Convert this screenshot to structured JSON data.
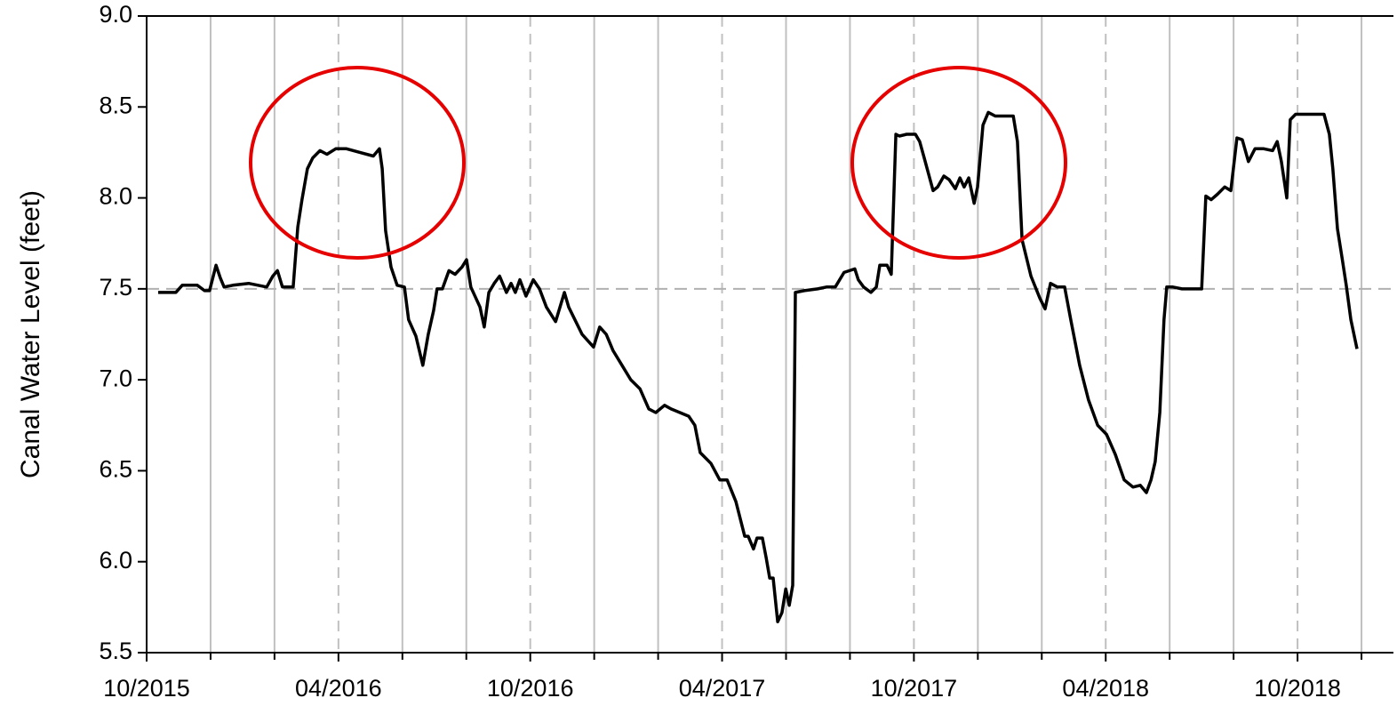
{
  "chart_data": {
    "type": "line",
    "ylabel": "Canal Water Level (feet)",
    "color": "#000000",
    "x": [
      2015.78,
      2015.826,
      2015.843,
      2015.882,
      2015.901,
      2015.914,
      2015.931,
      2015.942,
      2015.952,
      2015.975,
      2016.016,
      2016.063,
      2016.079,
      2016.091,
      2016.104,
      2016.132,
      2016.144,
      2016.155,
      2016.169,
      2016.183,
      2016.202,
      2016.22,
      2016.243,
      2016.271,
      2016.306,
      2016.341,
      2016.357,
      2016.364,
      2016.373,
      2016.387,
      2016.403,
      2016.422,
      2016.433,
      2016.452,
      2016.47,
      2016.484,
      2016.498,
      2016.507,
      2016.521,
      2016.538,
      2016.554,
      2016.572,
      2016.584,
      2016.595,
      2016.619,
      2016.63,
      2016.642,
      2016.656,
      2016.67,
      2016.688,
      2016.7,
      2016.711,
      2016.723,
      2016.739,
      2016.758,
      2016.774,
      2016.792,
      2016.816,
      2016.839,
      2016.85,
      2016.885,
      2016.915,
      2016.931,
      2016.948,
      2016.966,
      2016.989,
      2017.012,
      2017.036,
      2017.059,
      2017.077,
      2017.1,
      2017.117,
      2017.14,
      2017.163,
      2017.179,
      2017.193,
      2017.221,
      2017.244,
      2017.263,
      2017.286,
      2017.309,
      2017.318,
      2017.332,
      2017.341,
      2017.355,
      2017.365,
      2017.374,
      2017.383,
      2017.395,
      2017.406,
      2017.416,
      2017.425,
      2017.434,
      2017.441,
      2017.464,
      2017.499,
      2017.522,
      2017.545,
      2017.568,
      2017.596,
      2017.605,
      2017.619,
      2017.638,
      2017.652,
      2017.661,
      2017.68,
      2017.691,
      2017.703,
      2017.712,
      2017.731,
      2017.754,
      2017.765,
      2017.777,
      2017.8,
      2017.812,
      2017.828,
      2017.842,
      2017.858,
      2017.87,
      2017.881,
      2017.893,
      2017.907,
      2017.916,
      2017.93,
      2017.944,
      2017.962,
      2018.009,
      2018.02,
      2018.032,
      2018.055,
      2018.078,
      2018.092,
      2018.106,
      2018.124,
      2018.143,
      2018.159,
      2018.182,
      2018.205,
      2018.229,
      2018.252,
      2018.275,
      2018.298,
      2018.321,
      2018.34,
      2018.356,
      2018.368,
      2018.379,
      2018.391,
      2018.402,
      2018.409,
      2018.425,
      2018.449,
      2018.5,
      2018.511,
      2018.525,
      2018.541,
      2018.56,
      2018.576,
      2018.592,
      2018.606,
      2018.622,
      2018.639,
      2018.662,
      2018.685,
      2018.697,
      2018.708,
      2018.722,
      2018.731,
      2018.745,
      2018.785,
      2018.819,
      2018.833,
      2018.842,
      2018.854,
      2018.866,
      2018.877,
      2018.889,
      2018.905
    ],
    "values": [
      7.48,
      7.48,
      7.52,
      7.52,
      7.49,
      7.49,
      7.63,
      7.56,
      7.51,
      7.52,
      7.53,
      7.51,
      7.57,
      7.6,
      7.51,
      7.51,
      7.84,
      7.99,
      8.16,
      8.22,
      8.26,
      8.24,
      8.27,
      8.27,
      8.25,
      8.23,
      8.27,
      8.16,
      7.82,
      7.62,
      7.52,
      7.51,
      7.33,
      7.24,
      7.08,
      7.25,
      7.38,
      7.5,
      7.5,
      7.6,
      7.58,
      7.62,
      7.66,
      7.51,
      7.4,
      7.29,
      7.48,
      7.53,
      7.57,
      7.48,
      7.53,
      7.48,
      7.55,
      7.46,
      7.55,
      7.5,
      7.4,
      7.32,
      7.48,
      7.4,
      7.25,
      7.18,
      7.29,
      7.25,
      7.16,
      7.08,
      7.0,
      6.95,
      6.84,
      6.82,
      6.86,
      6.84,
      6.82,
      6.8,
      6.75,
      6.6,
      6.54,
      6.45,
      6.45,
      6.33,
      6.14,
      6.14,
      6.07,
      6.13,
      6.13,
      6.02,
      5.91,
      5.91,
      5.67,
      5.72,
      5.85,
      5.76,
      5.87,
      7.48,
      7.49,
      7.5,
      7.51,
      7.51,
      7.59,
      7.61,
      7.55,
      7.51,
      7.48,
      7.51,
      7.63,
      7.63,
      7.58,
      8.35,
      8.34,
      8.35,
      8.35,
      8.31,
      8.22,
      8.04,
      8.06,
      8.12,
      8.1,
      8.05,
      8.11,
      8.06,
      8.11,
      7.97,
      8.06,
      8.4,
      8.47,
      8.45,
      8.45,
      8.31,
      7.77,
      7.57,
      7.45,
      7.39,
      7.53,
      7.51,
      7.51,
      7.33,
      7.08,
      6.89,
      6.75,
      6.7,
      6.59,
      6.45,
      6.41,
      6.42,
      6.38,
      6.45,
      6.55,
      6.82,
      7.33,
      7.51,
      7.51,
      7.5,
      7.5,
      8.01,
      7.99,
      8.02,
      8.06,
      8.04,
      8.33,
      8.32,
      8.2,
      8.27,
      8.27,
      8.26,
      8.31,
      8.2,
      8.0,
      8.43,
      8.46,
      8.46,
      8.46,
      8.35,
      8.16,
      7.83,
      7.67,
      7.52,
      7.33,
      7.17
    ],
    "xlim": [
      2015.75,
      2019.0
    ],
    "xticks": [
      {
        "value": 2015.75,
        "label": "10/2015"
      },
      {
        "value": 2016.25,
        "label": "04/2016"
      },
      {
        "value": 2016.75,
        "label": "10/2016"
      },
      {
        "value": 2017.25,
        "label": "04/2017"
      },
      {
        "value": 2017.75,
        "label": "10/2017"
      },
      {
        "value": 2018.25,
        "label": "04/2018"
      },
      {
        "value": 2018.75,
        "label": "10/2018"
      }
    ],
    "xgrid_minor": [
      2015.9167,
      2016.0833,
      2016.4167,
      2016.5833,
      2016.9167,
      2017.0833,
      2017.4167,
      2017.5833,
      2017.9167,
      2018.0833,
      2018.4167,
      2018.5833,
      2018.9167
    ],
    "ylim": [
      5.5,
      9.0
    ],
    "yticks": [
      5.5,
      {
        "value": 6,
        "label": "6.0"
      },
      6.5,
      {
        "value": 7,
        "label": "7.0"
      },
      7.5,
      {
        "value": 8,
        "label": "8.0"
      },
      8.5,
      {
        "value": 9,
        "label": "9.0"
      }
    ],
    "reference_line": 7.5,
    "grid": true
  }
}
